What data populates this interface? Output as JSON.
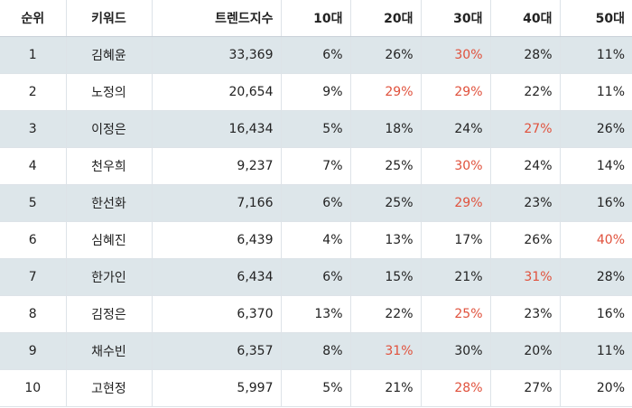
{
  "colors": {
    "highlight": "#e0513c",
    "stripe": "#dde6ea",
    "border": "#dde3e8"
  },
  "headers": [
    "순위",
    "키워드",
    "트렌드지수",
    "10대",
    "20대",
    "30대",
    "40대",
    "50대"
  ],
  "rows": [
    {
      "rank": "1",
      "keyword": "김혜윤",
      "trend": "33,369",
      "ages": [
        "6%",
        "26%",
        "30%",
        "28%",
        "11%"
      ],
      "max_index": 2
    },
    {
      "rank": "2",
      "keyword": "노정의",
      "trend": "20,654",
      "ages": [
        "9%",
        "29%",
        "29%",
        "22%",
        "11%"
      ],
      "max_index": [
        1,
        2
      ]
    },
    {
      "rank": "3",
      "keyword": "이정은",
      "trend": "16,434",
      "ages": [
        "5%",
        "18%",
        "24%",
        "27%",
        "26%"
      ],
      "max_index": 3
    },
    {
      "rank": "4",
      "keyword": "천우희",
      "trend": "9,237",
      "ages": [
        "7%",
        "25%",
        "30%",
        "24%",
        "14%"
      ],
      "max_index": 2
    },
    {
      "rank": "5",
      "keyword": "한선화",
      "trend": "7,166",
      "ages": [
        "6%",
        "25%",
        "29%",
        "23%",
        "16%"
      ],
      "max_index": 2
    },
    {
      "rank": "6",
      "keyword": "심혜진",
      "trend": "6,439",
      "ages": [
        "4%",
        "13%",
        "17%",
        "26%",
        "40%"
      ],
      "max_index": 4
    },
    {
      "rank": "7",
      "keyword": "한가인",
      "trend": "6,434",
      "ages": [
        "6%",
        "15%",
        "21%",
        "31%",
        "28%"
      ],
      "max_index": 3
    },
    {
      "rank": "8",
      "keyword": "김정은",
      "trend": "6,370",
      "ages": [
        "13%",
        "22%",
        "25%",
        "23%",
        "16%"
      ],
      "max_index": 2
    },
    {
      "rank": "9",
      "keyword": "채수빈",
      "trend": "6,357",
      "ages": [
        "8%",
        "31%",
        "30%",
        "20%",
        "11%"
      ],
      "max_index": 1
    },
    {
      "rank": "10",
      "keyword": "고현정",
      "trend": "5,997",
      "ages": [
        "5%",
        "21%",
        "28%",
        "27%",
        "20%"
      ],
      "max_index": 2
    }
  ]
}
